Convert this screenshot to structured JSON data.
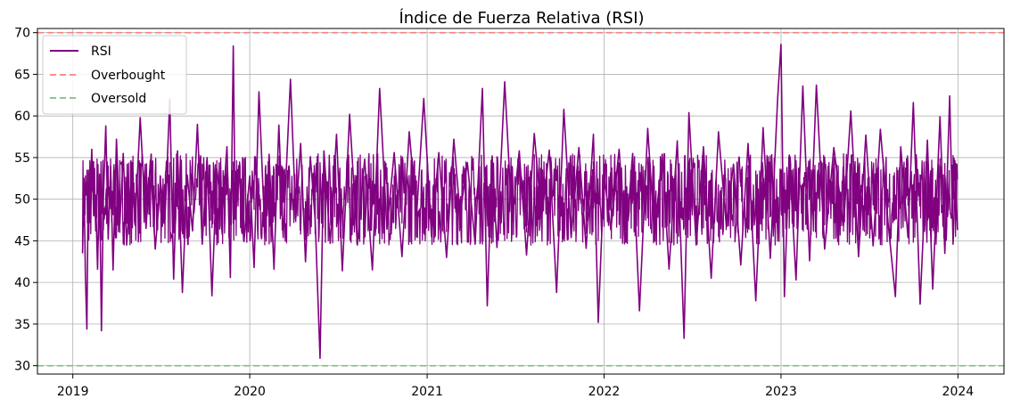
{
  "chart_data": {
    "type": "line",
    "title": "Índice de Fuerza Relativa (RSI)",
    "xlabel": "",
    "ylabel": "",
    "x_range": [
      "2018-10-20",
      "2024-04-05"
    ],
    "ylim": [
      29,
      70.5
    ],
    "x_ticks": [
      {
        "date": "2019-01-01",
        "label": "2019"
      },
      {
        "date": "2020-01-01",
        "label": "2020"
      },
      {
        "date": "2021-01-01",
        "label": "2021"
      },
      {
        "date": "2022-01-01",
        "label": "2022"
      },
      {
        "date": "2023-01-01",
        "label": "2023"
      },
      {
        "date": "2024-01-01",
        "label": "2024"
      }
    ],
    "y_ticks": [
      30,
      35,
      40,
      45,
      50,
      55,
      60,
      65,
      70
    ],
    "grid": true,
    "legend_position": "upper-left",
    "legend": [
      "RSI",
      "Overbought",
      "Oversold"
    ],
    "series": [
      {
        "name": "RSI",
        "color": "#800080",
        "style": "solid",
        "points": [
          [
            "2019-01-21",
            43.5
          ],
          [
            "2019-01-24",
            52.0
          ],
          [
            "2019-01-27",
            40.6
          ],
          [
            "2019-01-30",
            34.4
          ],
          [
            "2019-02-02",
            53.5
          ],
          [
            "2019-02-05",
            47.2
          ],
          [
            "2019-02-09",
            56.0
          ],
          [
            "2019-02-13",
            48.0
          ],
          [
            "2019-02-17",
            50.5
          ],
          [
            "2019-02-21",
            41.6
          ],
          [
            "2019-02-25",
            53.0
          ],
          [
            "2019-03-01",
            34.2
          ],
          [
            "2019-03-05",
            50.0
          ],
          [
            "2019-03-10",
            58.8
          ],
          [
            "2019-03-15",
            45.2
          ],
          [
            "2019-03-20",
            53.9
          ],
          [
            "2019-03-25",
            41.5
          ],
          [
            "2019-04-01",
            57.2
          ],
          [
            "2019-04-08",
            47.0
          ],
          [
            "2019-04-15",
            55.5
          ],
          [
            "2019-04-22",
            44.5
          ],
          [
            "2019-05-01",
            52.6
          ],
          [
            "2019-05-10",
            47.8
          ],
          [
            "2019-05-20",
            59.8
          ],
          [
            "2019-06-01",
            46.5
          ],
          [
            "2019-06-10",
            54.7
          ],
          [
            "2019-06-20",
            44.0
          ],
          [
            "2019-07-01",
            52.0
          ],
          [
            "2019-07-10",
            47.5
          ],
          [
            "2019-07-20",
            62.0
          ],
          [
            "2019-07-28",
            40.4
          ],
          [
            "2019-08-05",
            55.8
          ],
          [
            "2019-08-15",
            38.8
          ],
          [
            "2019-08-25",
            52.9
          ],
          [
            "2019-09-05",
            46.2
          ],
          [
            "2019-09-15",
            59.0
          ],
          [
            "2019-09-25",
            44.6
          ],
          [
            "2019-10-05",
            55.0
          ],
          [
            "2019-10-15",
            38.4
          ],
          [
            "2019-10-25",
            53.7
          ],
          [
            "2019-11-05",
            47.9
          ],
          [
            "2019-11-15",
            56.3
          ],
          [
            "2019-11-22",
            40.6
          ],
          [
            "2019-11-28",
            68.4
          ],
          [
            "2019-12-02",
            47.6
          ],
          [
            "2019-12-10",
            53.1
          ],
          [
            "2019-12-20",
            44.9
          ],
          [
            "2020-01-01",
            52.8
          ],
          [
            "2020-01-10",
            41.8
          ],
          [
            "2020-01-20",
            62.9
          ],
          [
            "2020-02-01",
            46.0
          ],
          [
            "2020-02-10",
            55.3
          ],
          [
            "2020-02-20",
            41.6
          ],
          [
            "2020-03-01",
            58.9
          ],
          [
            "2020-03-10",
            45.4
          ],
          [
            "2020-03-25",
            64.4
          ],
          [
            "2020-04-05",
            47.7
          ],
          [
            "2020-04-15",
            56.7
          ],
          [
            "2020-04-25",
            42.5
          ],
          [
            "2020-05-05",
            55.1
          ],
          [
            "2020-05-15",
            47.5
          ],
          [
            "2020-05-25",
            30.9
          ],
          [
            "2020-06-02",
            55.8
          ],
          [
            "2020-06-15",
            44.7
          ],
          [
            "2020-06-28",
            57.8
          ],
          [
            "2020-07-10",
            41.4
          ],
          [
            "2020-07-25",
            60.2
          ],
          [
            "2020-08-10",
            44.5
          ],
          [
            "2020-08-25",
            54.8
          ],
          [
            "2020-09-10",
            41.5
          ],
          [
            "2020-09-25",
            63.3
          ],
          [
            "2020-10-10",
            46.4
          ],
          [
            "2020-10-25",
            55.6
          ],
          [
            "2020-11-10",
            43.1
          ],
          [
            "2020-11-25",
            58.1
          ],
          [
            "2020-12-10",
            47.9
          ],
          [
            "2020-12-25",
            62.1
          ],
          [
            "2021-01-10",
            45.5
          ],
          [
            "2021-01-25",
            55.6
          ],
          [
            "2021-02-10",
            43.0
          ],
          [
            "2021-02-25",
            57.2
          ],
          [
            "2021-03-10",
            48.2
          ],
          [
            "2021-03-25",
            54.4
          ],
          [
            "2021-04-10",
            44.6
          ],
          [
            "2021-04-25",
            63.3
          ],
          [
            "2021-05-05",
            37.2
          ],
          [
            "2021-05-15",
            55.2
          ],
          [
            "2021-05-25",
            44.2
          ],
          [
            "2021-06-10",
            64.1
          ],
          [
            "2021-06-25",
            47.3
          ],
          [
            "2021-07-10",
            55.8
          ],
          [
            "2021-07-25",
            43.3
          ],
          [
            "2021-08-10",
            57.9
          ],
          [
            "2021-08-25",
            47.7
          ],
          [
            "2021-09-10",
            55.9
          ],
          [
            "2021-09-25",
            38.8
          ],
          [
            "2021-10-10",
            60.8
          ],
          [
            "2021-10-25",
            45.4
          ],
          [
            "2021-11-10",
            56.2
          ],
          [
            "2021-11-25",
            44.1
          ],
          [
            "2021-12-10",
            57.8
          ],
          [
            "2021-12-20",
            35.2
          ],
          [
            "2022-01-01",
            53.0
          ],
          [
            "2022-01-15",
            46.3
          ],
          [
            "2022-02-01",
            56.0
          ],
          [
            "2022-02-15",
            44.8
          ],
          [
            "2022-03-01",
            55.5
          ],
          [
            "2022-03-15",
            36.6
          ],
          [
            "2022-04-01",
            58.5
          ],
          [
            "2022-04-15",
            45.7
          ],
          [
            "2022-05-01",
            55.4
          ],
          [
            "2022-05-15",
            41.6
          ],
          [
            "2022-06-01",
            57.0
          ],
          [
            "2022-06-15",
            33.3
          ],
          [
            "2022-06-25",
            60.4
          ],
          [
            "2022-07-10",
            44.5
          ],
          [
            "2022-07-25",
            56.3
          ],
          [
            "2022-08-10",
            40.5
          ],
          [
            "2022-08-25",
            58.1
          ],
          [
            "2022-09-10",
            46.9
          ],
          [
            "2022-09-25",
            54.2
          ],
          [
            "2022-10-10",
            42.1
          ],
          [
            "2022-10-25",
            56.7
          ],
          [
            "2022-11-10",
            37.8
          ],
          [
            "2022-11-25",
            58.6
          ],
          [
            "2022-12-10",
            42.9
          ],
          [
            "2022-12-25",
            62.0
          ],
          [
            "2023-01-01",
            68.6
          ],
          [
            "2023-01-08",
            38.3
          ],
          [
            "2023-01-18",
            55.3
          ],
          [
            "2023-02-01",
            40.3
          ],
          [
            "2023-02-15",
            63.6
          ],
          [
            "2023-03-01",
            42.6
          ],
          [
            "2023-03-15",
            63.7
          ],
          [
            "2023-04-01",
            44.0
          ],
          [
            "2023-04-20",
            56.2
          ],
          [
            "2023-05-10",
            46.8
          ],
          [
            "2023-05-25",
            60.6
          ],
          [
            "2023-06-10",
            43.1
          ],
          [
            "2023-06-25",
            57.7
          ],
          [
            "2023-07-10",
            44.4
          ],
          [
            "2023-07-25",
            58.4
          ],
          [
            "2023-08-10",
            47.1
          ],
          [
            "2023-08-25",
            38.3
          ],
          [
            "2023-09-05",
            56.3
          ],
          [
            "2023-09-20",
            45.4
          ],
          [
            "2023-10-01",
            61.6
          ],
          [
            "2023-10-15",
            37.4
          ],
          [
            "2023-10-30",
            57.1
          ],
          [
            "2023-11-10",
            39.2
          ],
          [
            "2023-11-25",
            59.9
          ],
          [
            "2023-12-05",
            43.5
          ],
          [
            "2023-12-15",
            62.4
          ],
          [
            "2023-12-22",
            44.6
          ],
          [
            "2023-12-27",
            53.3
          ],
          [
            "2023-12-31",
            46.3
          ]
        ]
      },
      {
        "name": "Overbought",
        "color": "#ff7f7f",
        "style": "dashed",
        "y": 70
      },
      {
        "name": "Oversold",
        "color": "#7fbf7f",
        "style": "dashed",
        "y": 30
      }
    ]
  }
}
